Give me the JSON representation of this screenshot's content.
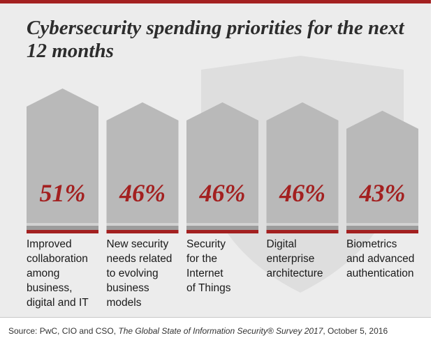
{
  "chart_data": {
    "type": "bar",
    "title": "Cybersecurity spending priorities for the next 12 months",
    "categories": [
      [
        "Improved",
        "collaboration",
        "among",
        "business,",
        "digital and IT"
      ],
      [
        "New security",
        "needs related",
        "to evolving",
        "business",
        "models"
      ],
      [
        "Security",
        "for the",
        "Internet",
        "of Things"
      ],
      [
        "Digital",
        "enterprise",
        "architecture"
      ],
      [
        "Biometrics",
        "and advanced",
        "authentication"
      ]
    ],
    "values": [
      51,
      46,
      46,
      46,
      43
    ],
    "value_labels": [
      "51%",
      "46%",
      "46%",
      "46%",
      "43%"
    ],
    "unit": "%",
    "colors": {
      "bar": "#b9b9b9",
      "value_text": "#a32020",
      "accent": "#a32020",
      "band_light": "#d2d2d2",
      "band_dark": "#9c9c9c",
      "panel": "#ececec",
      "shield": "#dedede"
    }
  },
  "source": {
    "prefix": "Source: PwC, CIO and CSO, ",
    "publication": "The Global State of Information Security® Survey 2017",
    "suffix": ", October 5, 2016"
  }
}
